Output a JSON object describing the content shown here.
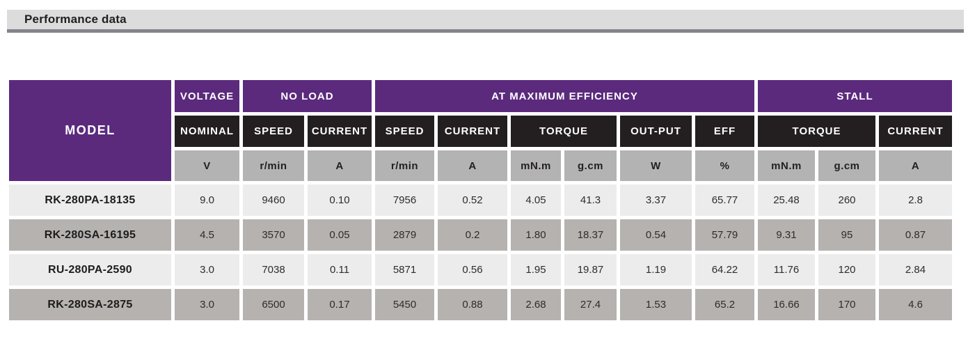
{
  "page_header": {
    "title": "Performance data"
  },
  "colors": {
    "group_header_bg": "#5b2a7d",
    "subheader_bg": "#231f20",
    "unit_row_bg": "#b3b3b3",
    "row_light_bg": "#ececec",
    "row_dark_bg": "#b5b2b0",
    "section_bar_bg": "#dcdcdc",
    "section_bar_underline": "#84848d"
  },
  "table": {
    "model_header": "MODEL",
    "groups": [
      {
        "label": "VOLTAGE",
        "span": 1
      },
      {
        "label": "NO LOAD",
        "span": 2
      },
      {
        "label": "AT MAXIMUM EFFICIENCY",
        "span": 6
      },
      {
        "label": "STALL",
        "span": 3
      }
    ],
    "subheaders": [
      {
        "label": "NOMINAL",
        "span": 1
      },
      {
        "label": "SPEED",
        "span": 1
      },
      {
        "label": "CURRENT",
        "span": 1
      },
      {
        "label": "SPEED",
        "span": 1
      },
      {
        "label": "CURRENT",
        "span": 1
      },
      {
        "label": "TORQUE",
        "span": 2
      },
      {
        "label": "OUT-PUT",
        "span": 1
      },
      {
        "label": "EFF",
        "span": 1
      },
      {
        "label": "TORQUE",
        "span": 2
      },
      {
        "label": "CURRENT",
        "span": 1
      }
    ],
    "units": [
      "V",
      "r/min",
      "A",
      "r/min",
      "A",
      "mN.m",
      "g.cm",
      "W",
      "%",
      "mN.m",
      "g.cm",
      "A"
    ],
    "rows": [
      {
        "model": "RK-280PA-18135",
        "values": [
          "9.0",
          "9460",
          "0.10",
          "7956",
          "0.52",
          "4.05",
          "41.3",
          "3.37",
          "65.77",
          "25.48",
          "260",
          "2.8"
        ]
      },
      {
        "model": "RK-280SA-16195",
        "values": [
          "4.5",
          "3570",
          "0.05",
          "2879",
          "0.2",
          "1.80",
          "18.37",
          "0.54",
          "57.79",
          "9.31",
          "95",
          "0.87"
        ]
      },
      {
        "model": "RU-280PA-2590",
        "values": [
          "3.0",
          "7038",
          "0.11",
          "5871",
          "0.56",
          "1.95",
          "19.87",
          "1.19",
          "64.22",
          "11.76",
          "120",
          "2.84"
        ]
      },
      {
        "model": "RK-280SA-2875",
        "values": [
          "3.0",
          "6500",
          "0.17",
          "5450",
          "0.88",
          "2.68",
          "27.4",
          "1.53",
          "65.2",
          "16.66",
          "170",
          "4.6"
        ]
      }
    ]
  }
}
